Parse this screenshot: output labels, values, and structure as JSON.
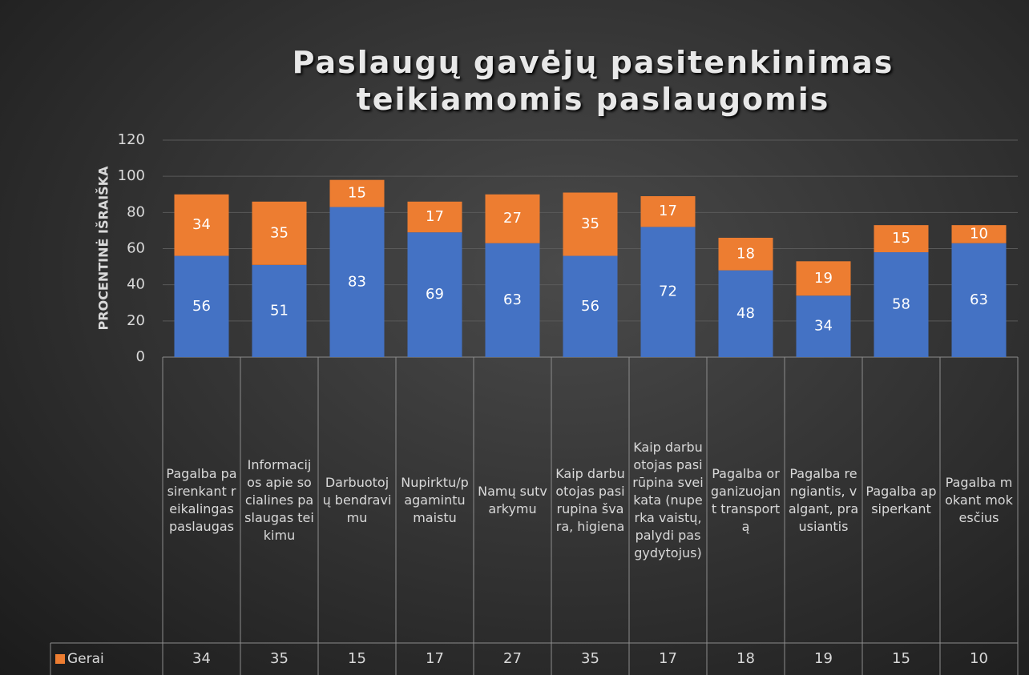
{
  "chart_data": {
    "type": "stacked_bar",
    "title": "Paslaugų gavėjų pasitenkinimas teikiamomis paslaugomis",
    "y_label": "PROCENTINĖ IŠRAIŠKA",
    "categories": [
      "Pagalba pasirenkant reikalingas paslaugas",
      "Informacijos apie socialines paslaugas teikimu",
      "Darbuotojų bendravimu",
      "Nupirktu/pagamintu maistu",
      "Namų sutvarkymu",
      "Kaip darbuotojas pasirupina švara, higiena",
      "Kaip darbuotojas pasirūpina sveikata (nuperka vaistų, palydi pas gydytojus)",
      "Pagalba organizuojant transportą",
      "Pagalba rengiantis, valgant, prausiantis",
      "Pagalba apsiperkant",
      "Pagalba mokant mokesčius"
    ],
    "series": [
      {
        "color": "#4472c4",
        "values": [
          56,
          51,
          83,
          69,
          63,
          56,
          72,
          48,
          34,
          58,
          63
        ]
      },
      {
        "name": "Gerai",
        "color": "#ed7d31",
        "values": [
          34,
          35,
          15,
          17,
          27,
          35,
          17,
          18,
          19,
          15,
          10
        ]
      }
    ],
    "ylim": [
      0,
      120
    ],
    "yticks": [
      0,
      20,
      40,
      60,
      80,
      100,
      120
    ],
    "grid": true
  }
}
